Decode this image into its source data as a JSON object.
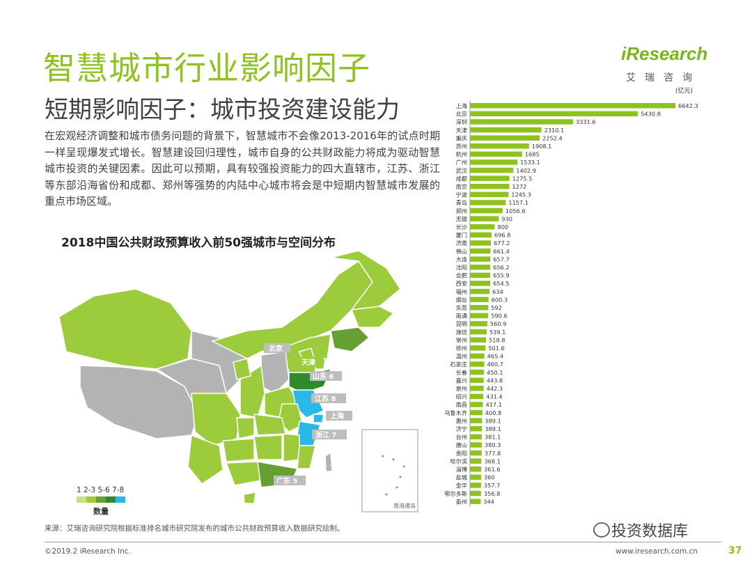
{
  "header": {
    "title": "智慧城市行业影响因子",
    "subtitle": "短期影响因子：城市投资建设能力",
    "logo_text": "iResearch",
    "logo_cn": "艾瑞咨询"
  },
  "intro_text": "在宏观经济调整和城市债务问题的背景下，智慧城市不会像2013-2016年的试点时期一样呈现爆发式增长。智慧建设回归理性，城市自身的公共财政能力将成为驱动智慧城市投资的关键因素。因此可以预期，具有较强投资能力的四大直辖市，江苏、浙江等东部沿海省份和成都、郑州等强势的内陆中心城市将会是中短期内智慧城市发展的重点市场区域。",
  "map": {
    "title": "2018中国公共财政预算收入前50强城市与空间分布",
    "legend_numbers": "1 2-3 5-6 7-8",
    "legend_label": "数量",
    "legend_colors": [
      "#c8df8a",
      "#9ccb3b",
      "#66a032",
      "#2f8a2c",
      "#29b9e8"
    ],
    "labels": [
      {
        "text": "北京"
      },
      {
        "text": "天津"
      },
      {
        "text": "山东 6"
      },
      {
        "text": "江苏 8"
      },
      {
        "text": "上海"
      },
      {
        "text": "浙江 7"
      },
      {
        "text": "广东 5"
      }
    ],
    "inset_label": "南海诸岛"
  },
  "chart_data": {
    "type": "bar",
    "orientation": "horizontal",
    "unit": "(亿元)",
    "categories": [
      "上海",
      "北京",
      "深圳",
      "天津",
      "重庆",
      "苏州",
      "杭州",
      "广州",
      "武汉",
      "成都",
      "南京",
      "宁波",
      "青岛",
      "郑州",
      "无锡",
      "长沙",
      "厦门",
      "济南",
      "佛山",
      "大连",
      "沈阳",
      "合肥",
      "西安",
      "福州",
      "烟台",
      "东莞",
      "南通",
      "昆明",
      "潍坊",
      "常州",
      "徐州",
      "温州",
      "石家庄",
      "长春",
      "嘉兴",
      "泉州",
      "绍兴",
      "南昌",
      "乌鲁木齐",
      "惠州",
      "济宁",
      "台州",
      "唐山",
      "贵阳",
      "哈尔滨",
      "淄博",
      "盐城",
      "金华",
      "鄂尔多斯",
      "泰州"
    ],
    "values": [
      6642.3,
      5430.8,
      3331.6,
      2310.1,
      2252.4,
      1908.1,
      1685,
      1533.1,
      1402.9,
      1275.5,
      1272,
      1245.3,
      1157.1,
      1056.6,
      930,
      800,
      696.8,
      677.2,
      661.4,
      657.7,
      656.2,
      655.9,
      654.5,
      634,
      600.3,
      592,
      590.6,
      560.9,
      539.1,
      518.8,
      501.6,
      465.4,
      460.7,
      450.1,
      443.8,
      442.3,
      431.4,
      417.1,
      400.8,
      389.1,
      389.1,
      381.1,
      380.3,
      377.8,
      368.1,
      361.6,
      360,
      357.7,
      356.8,
      344
    ],
    "value_labels": [
      "6642.3",
      "5430.8",
      "3331.6",
      "2310.1",
      "2252.4",
      "1908.1",
      "1685",
      "1533.1",
      "1402.9",
      "1275.5",
      "1272",
      "1245.3",
      "1157.1",
      "1056.6",
      "930",
      "800",
      "696.8",
      "677.2",
      "661.4",
      "657.7",
      "656.2",
      "655.9",
      "654.5",
      "634",
      "600.3",
      "592",
      "590.6",
      "560.9",
      "539.1",
      "518.8",
      "501.6",
      "465.4",
      "460.7",
      "450.1",
      "443.8",
      "442.3",
      "431.4",
      "417.1",
      "400.8",
      "389.1",
      "389.1",
      "381.1",
      "380.3",
      "377.8",
      "368.1",
      "361.6",
      "360",
      "357.7",
      "356.8",
      "344"
    ],
    "bar_color": "#8dc21f",
    "xlim": [
      0,
      6642.3
    ]
  },
  "footer": {
    "source": "来源：艾瑞咨询研究院根据标准排名城市研究院发布的城市公共财政预算收入数据研究绘制。",
    "copyright": "©2019.2 iResearch Inc.",
    "site": "www.iresearch.com.cn",
    "page": "37",
    "wechat_label": "投资数据库"
  }
}
